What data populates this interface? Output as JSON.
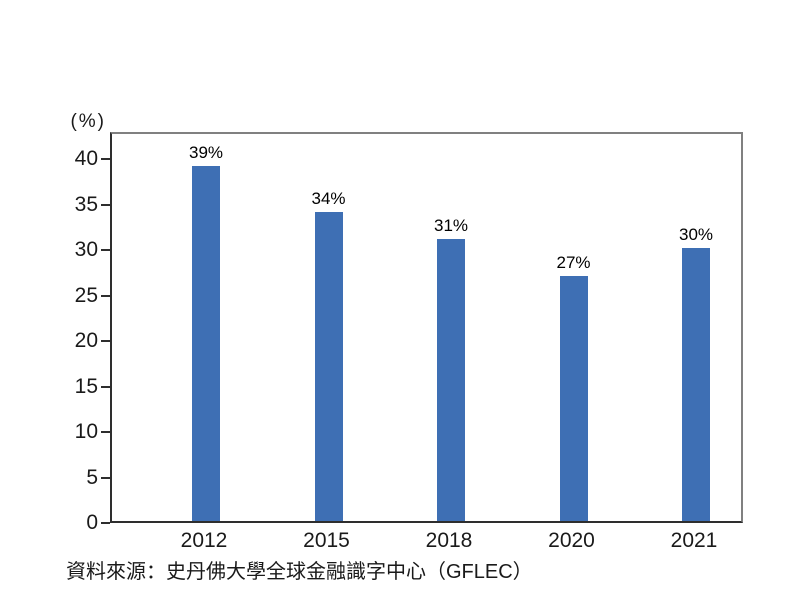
{
  "chart_data": {
    "type": "bar",
    "title": "",
    "categories": [
      "2012",
      "2015",
      "2018",
      "2020",
      "2021"
    ],
    "values": [
      39,
      34,
      31,
      27,
      30
    ],
    "data_labels": [
      "39%",
      "34%",
      "31%",
      "27%",
      "30%"
    ],
    "xlabel": "",
    "ylabel": "(%)",
    "yticks": [
      0,
      5,
      10,
      15,
      20,
      25,
      30,
      35,
      40
    ],
    "ylim": [
      0,
      43
    ],
    "grid": false,
    "legend": "none",
    "bar_color": "#3E6FB4",
    "axis_color": "#2e2e2e",
    "box_border_color": "#808080",
    "source_note": "資料來源：史丹佛大學全球金融識字中心（GFLEC）"
  }
}
